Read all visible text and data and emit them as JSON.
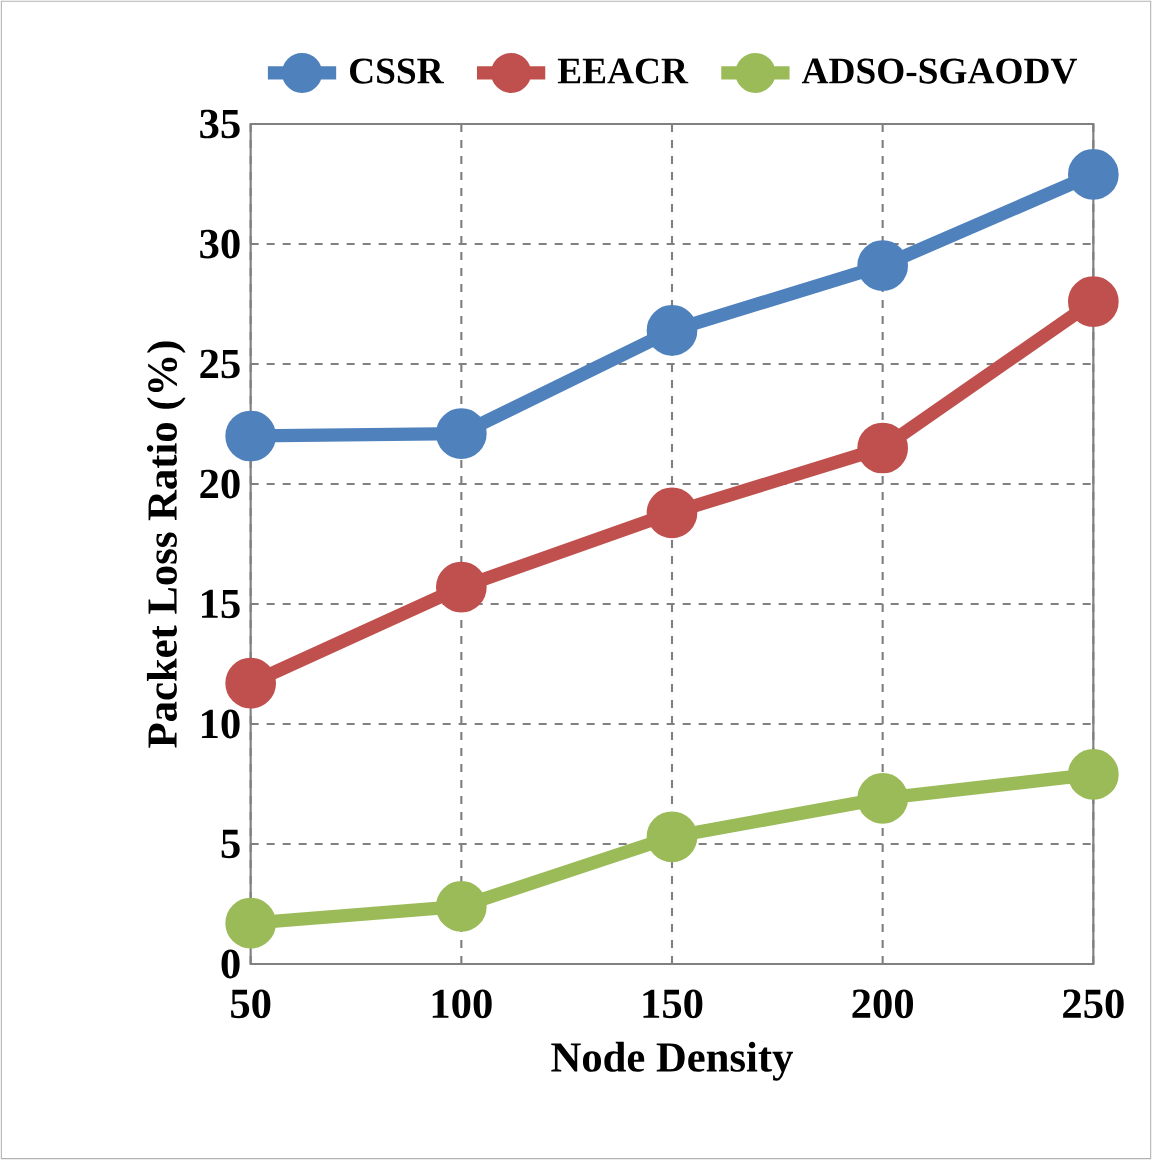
{
  "chart_data": {
    "type": "line",
    "xlabel": "Node Density",
    "ylabel": "Packet Loss Ratio (%)",
    "x": [
      50,
      100,
      150,
      200,
      250
    ],
    "xlim": [
      50,
      250
    ],
    "xticks": [
      50,
      100,
      150,
      200,
      250
    ],
    "ylim": [
      0,
      35
    ],
    "yticks": [
      0,
      5,
      10,
      15,
      20,
      25,
      30,
      35
    ],
    "grid": true,
    "legend": "top",
    "marker": "circle",
    "line_style": "solid",
    "series": [
      {
        "name": "CSSR",
        "color": "#4f81bd",
        "values": [
          22.0,
          22.1,
          26.4,
          29.1,
          32.9
        ]
      },
      {
        "name": "EEACR",
        "color": "#c0504d",
        "values": [
          11.7,
          15.7,
          18.8,
          21.5,
          27.6
        ]
      },
      {
        "name": "ADSO-SGAODV",
        "color": "#9bbb59",
        "values": [
          1.7,
          2.4,
          5.3,
          6.9,
          7.9
        ]
      }
    ]
  }
}
